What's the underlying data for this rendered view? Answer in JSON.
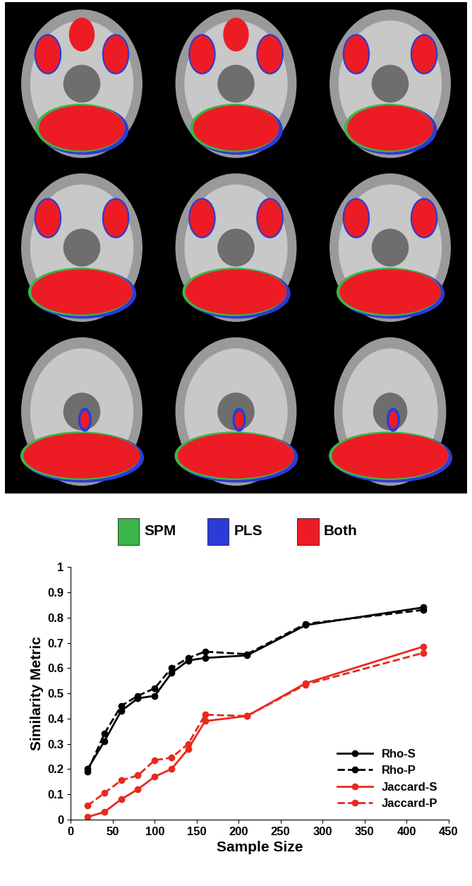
{
  "chart_data": {
    "type": "line",
    "x": [
      20,
      40,
      60,
      80,
      100,
      120,
      140,
      160,
      210,
      280,
      420
    ],
    "series": [
      {
        "name": "Rho-S",
        "color": "#000000",
        "line_style": "solid",
        "marker": "o",
        "values": [
          0.2,
          0.31,
          0.43,
          0.48,
          0.49,
          0.58,
          0.63,
          0.64,
          0.65,
          0.77,
          0.84
        ]
      },
      {
        "name": "Rho-P",
        "color": "#000000",
        "line_style": "dashed",
        "marker": "o",
        "values": [
          0.19,
          0.34,
          0.45,
          0.49,
          0.52,
          0.6,
          0.64,
          0.665,
          0.655,
          0.775,
          0.83
        ]
      },
      {
        "name": "Jaccard-S",
        "color": "#e8291c",
        "line_style": "solid",
        "marker": "o",
        "values": [
          0.01,
          0.03,
          0.08,
          0.12,
          0.17,
          0.2,
          0.28,
          0.39,
          0.41,
          0.54,
          0.685
        ]
      },
      {
        "name": "Jaccard-P",
        "color": "#e8291c",
        "line_style": "dashed",
        "marker": "o",
        "values": [
          0.055,
          0.105,
          0.155,
          0.175,
          0.235,
          0.245,
          0.3,
          0.415,
          0.41,
          0.535,
          0.66
        ]
      }
    ],
    "x_label": "Sample Size",
    "y_label": "Similarity Metric",
    "xlim": [
      0,
      450
    ],
    "xticks": [
      0,
      50,
      100,
      150,
      200,
      250,
      300,
      350,
      400,
      450
    ],
    "ylim": [
      0,
      1
    ],
    "yticks": [
      0,
      0.1,
      0.2,
      0.3,
      0.4,
      0.5,
      0.6,
      0.7,
      0.8,
      0.9,
      1
    ],
    "legend": "lower right",
    "grid": false
  },
  "image_panel": {
    "legend": [
      {
        "name": "SPM",
        "color": "#3cb54a"
      },
      {
        "name": "PLS",
        "color": "#2b3bd6"
      },
      {
        "name": "Both",
        "color": "#ed1c24"
      }
    ]
  }
}
